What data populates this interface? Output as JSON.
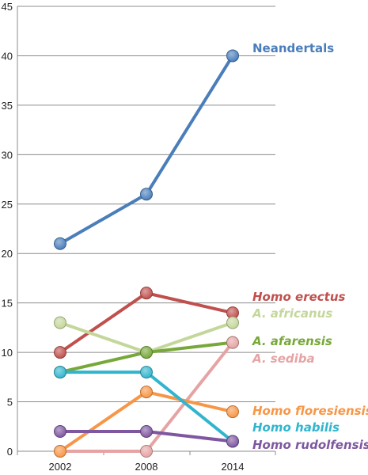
{
  "chart_data": {
    "type": "line",
    "title": "",
    "xlabel": "",
    "ylabel": "",
    "x": [
      "2002",
      "2008",
      "2014"
    ],
    "ylim": [
      0,
      45
    ],
    "yticks": [
      0,
      5,
      10,
      15,
      20,
      25,
      30,
      35,
      40,
      45
    ],
    "grid": "horizontal",
    "legend": "direct labels at right end of lines",
    "series": [
      {
        "name": "Neandertals",
        "values": [
          21,
          26,
          40
        ],
        "color": "#4a7ebb",
        "italic": false
      },
      {
        "name": "Homo erectus",
        "values": [
          10,
          16,
          14
        ],
        "color": "#c0504d",
        "italic": true
      },
      {
        "name": "A. africanus",
        "values": [
          13,
          10,
          13
        ],
        "color": "#c4d79b",
        "italic": true
      },
      {
        "name": "A. afarensis",
        "values": [
          8,
          10,
          11
        ],
        "color": "#77a83a",
        "italic": true
      },
      {
        "name": "A. sediba",
        "values": [
          0,
          0,
          11
        ],
        "color": "#e6a3a3",
        "italic": true
      },
      {
        "name": "Homo floresiensis",
        "values": [
          0,
          6,
          4
        ],
        "color": "#f79646",
        "italic": true
      },
      {
        "name": "Homo habilis",
        "values": [
          8,
          8,
          1
        ],
        "color": "#31b5ce",
        "italic": true
      },
      {
        "name": "Homo rudolfensis",
        "values": [
          2,
          2,
          1
        ],
        "color": "#7e57a0",
        "italic": true
      }
    ]
  }
}
